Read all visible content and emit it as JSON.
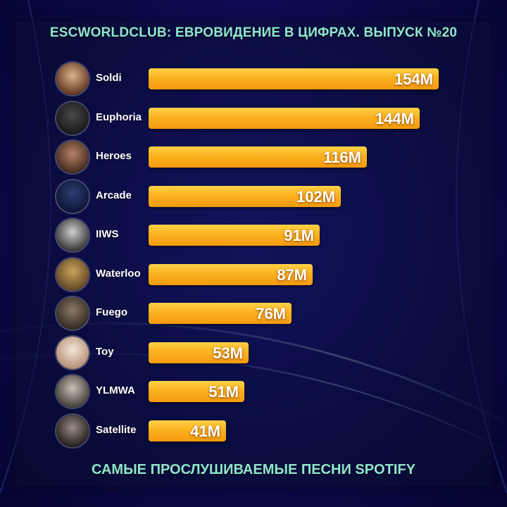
{
  "title": "ESCWORLDCLUB: ЕВРОВИДЕНИЕ В ЦИФРАХ. ВЫПУСК №20",
  "subtitle": "САМЫЕ ПРОСЛУШИВАЕМЫЕ ПЕСНИ SPOTIFY",
  "colors": {
    "accent_text": "#8fe6cc",
    "bar": "#fbb21f",
    "background": "#120f6b"
  },
  "chart_data": {
    "type": "bar",
    "orientation": "horizontal",
    "categories": [
      "Soldi",
      "Euphoria",
      "Heroes",
      "Arcade",
      "IIWS",
      "Waterloo",
      "Fuego",
      "Toy",
      "YLMWA",
      "Satellite"
    ],
    "values": [
      154,
      144,
      116,
      102,
      91,
      87,
      76,
      53,
      51,
      41
    ],
    "value_labels": [
      "154M",
      "144M",
      "116M",
      "102M",
      "91M",
      "87M",
      "76M",
      "53M",
      "51M",
      "41M"
    ],
    "xlim": [
      0,
      154
    ],
    "grid": false,
    "legend": "none"
  }
}
